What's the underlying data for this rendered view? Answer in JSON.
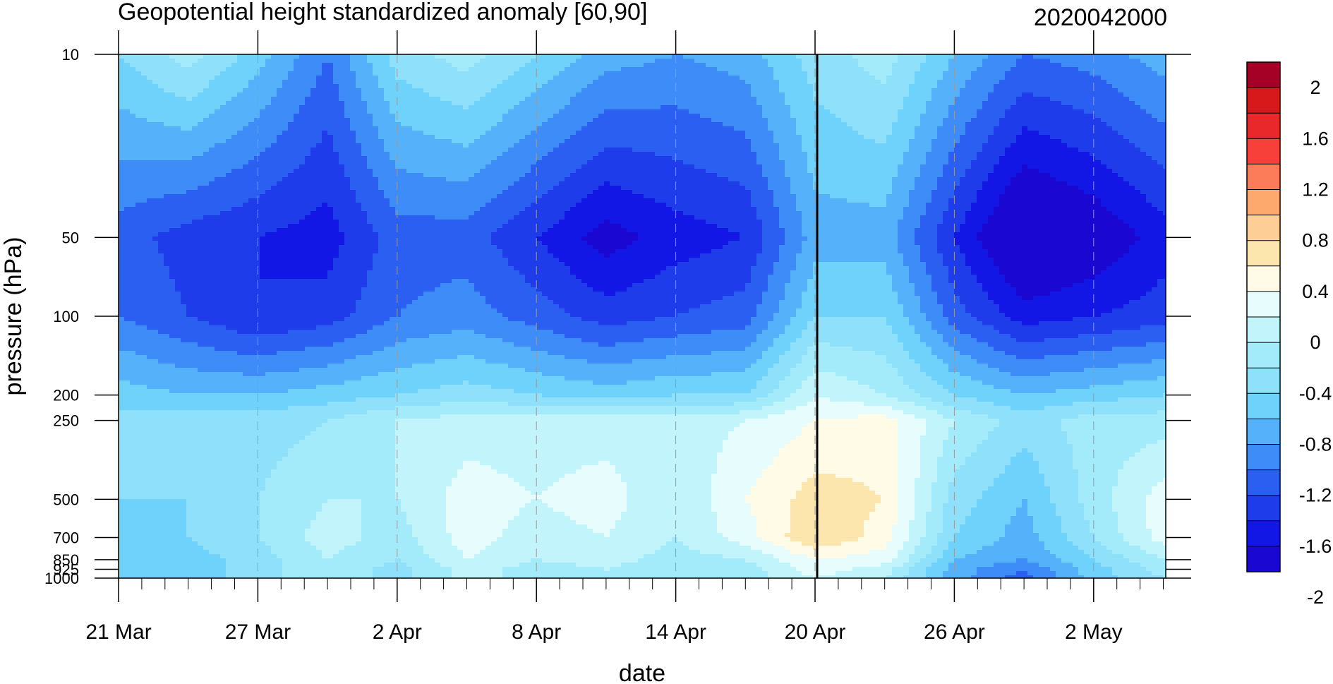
{
  "chart_data": {
    "type": "heatmap",
    "title": "Geopotential height standardized anomaly [60,90]",
    "date_label": "2020042000",
    "xlabel": "date",
    "ylabel": "pressure (hPa)",
    "x_tick_labels": [
      "21 Mar",
      "27 Mar",
      "2 Apr",
      "8 Apr",
      "14 Apr",
      "20 Apr",
      "26 Apr",
      "2 May"
    ],
    "y_tick_labels": [
      "10",
      "50",
      "100",
      "200",
      "250",
      "500",
      "700",
      "850",
      "925",
      "1000"
    ],
    "y_levels_hPa": [
      10,
      50,
      100,
      200,
      250,
      500,
      700,
      850,
      925,
      1000
    ],
    "y_scale": "log (pressure)",
    "x_range": [
      "2020-03-21",
      "2020-05-06"
    ],
    "y_range_hPa": [
      1000,
      10
    ],
    "grid": "dashed vertical lines at labeled dates",
    "reference_line": "20 Apr",
    "colorbar": {
      "labels": [
        "2",
        "1.6",
        "1.2",
        "0.8",
        "0.4",
        "0",
        "-0.4",
        "-0.8",
        "-1.2",
        "-1.6",
        "-2"
      ],
      "colors": [
        "#a50026",
        "#d7191c",
        "#e8282a",
        "#f7403a",
        "#fc7c5a",
        "#fda96e",
        "#fdce95",
        "#fde6ad",
        "#fffbe6",
        "#e6fcfd",
        "#c2f4fb",
        "#a3ebfb",
        "#8ee0fb",
        "#6fd2fb",
        "#56b1fb",
        "#3d8cf7",
        "#2a5ff2",
        "#1f3ceb",
        "#1317e6",
        "#1a08d2"
      ]
    },
    "colorbar_position": "right",
    "z_values": {
      "levels_hPa": [
        10,
        50,
        100,
        200,
        250,
        500,
        700,
        850,
        925,
        1000
      ],
      "dates": [
        "21 Mar",
        "24 Mar",
        "27 Mar",
        "30 Mar",
        "2 Apr",
        "5 Apr",
        "8 Apr",
        "11 Apr",
        "14 Apr",
        "17 Apr",
        "20 Apr",
        "23 Apr",
        "26 Apr",
        "29 Apr",
        "2 May",
        "5 May"
      ],
      "rows": [
        [
          -0.6,
          -0.3,
          -0.7,
          -1.2,
          -0.5,
          -0.3,
          -0.6,
          -0.9,
          -1.0,
          -0.9,
          -0.5,
          -0.3,
          -0.8,
          -1.2,
          -1.1,
          -0.9
        ],
        [
          -1.3,
          -1.5,
          -1.6,
          -1.7,
          -1.3,
          -1.3,
          -1.6,
          -1.9,
          -1.7,
          -1.6,
          -0.9,
          -0.9,
          -1.6,
          -2.2,
          -2.0,
          -1.7
        ],
        [
          -1.2,
          -1.4,
          -1.6,
          -1.5,
          -1.2,
          -1.1,
          -1.3,
          -1.5,
          -1.4,
          -1.3,
          -0.6,
          -0.6,
          -1.3,
          -1.7,
          -1.6,
          -1.5
        ],
        [
          -0.7,
          -0.8,
          -0.8,
          -0.7,
          -0.6,
          -0.5,
          -0.6,
          -0.7,
          -0.6,
          -0.6,
          0.0,
          -0.2,
          -0.6,
          -0.8,
          -0.7,
          -0.6
        ],
        [
          -0.5,
          -0.5,
          -0.5,
          -0.4,
          -0.2,
          -0.1,
          -0.1,
          -0.1,
          -0.1,
          0.0,
          0.2,
          0.3,
          -0.2,
          -0.5,
          -0.3,
          -0.3
        ],
        [
          -0.6,
          -0.6,
          -0.4,
          -0.2,
          -0.2,
          0.1,
          0.0,
          0.1,
          -0.2,
          0.2,
          0.5,
          0.4,
          -0.5,
          -0.8,
          -0.3,
          0.1
        ],
        [
          -0.6,
          -0.6,
          -0.4,
          -0.1,
          -0.3,
          0.1,
          -0.1,
          0.0,
          -0.2,
          0.1,
          0.6,
          0.3,
          -0.6,
          -0.9,
          -0.4,
          0.1
        ],
        [
          -0.6,
          -0.7,
          -0.5,
          -0.2,
          -0.4,
          0.0,
          -0.2,
          -0.1,
          -0.3,
          -0.2,
          0.2,
          0.1,
          -0.8,
          -1.0,
          -0.6,
          -0.2
        ],
        [
          -0.6,
          -0.7,
          -0.5,
          -0.2,
          -0.5,
          -0.1,
          -0.3,
          -0.2,
          -0.4,
          -0.3,
          0.1,
          -0.1,
          -0.9,
          -1.2,
          -0.7,
          -0.3
        ],
        [
          -0.7,
          -0.7,
          -0.5,
          -0.2,
          -0.5,
          -0.1,
          -0.3,
          -0.2,
          -0.4,
          -0.3,
          0.0,
          -0.2,
          -0.9,
          -1.3,
          -0.7,
          -0.4
        ]
      ]
    }
  }
}
